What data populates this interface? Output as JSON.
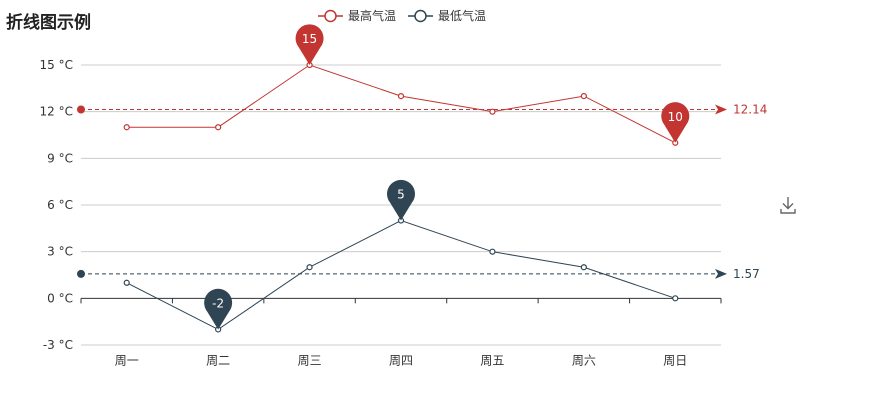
{
  "chart_data": {
    "type": "line",
    "title": "折线图示例",
    "categories": [
      "周一",
      "周二",
      "周三",
      "周四",
      "周五",
      "周六",
      "周日"
    ],
    "ylim": [
      -3,
      15
    ],
    "yticks": [
      -3,
      0,
      3,
      6,
      9,
      12,
      15
    ],
    "y_unit": "°C",
    "grid": true,
    "legend_position": "top-center",
    "series": [
      {
        "name": "最高气温",
        "color": "#c23531",
        "values": [
          11,
          11,
          15,
          13,
          12,
          13,
          10
        ],
        "mark_points": [
          {
            "category": "周三",
            "value": 15,
            "label": "15"
          },
          {
            "category": "周日",
            "value": 10,
            "label": "10"
          }
        ],
        "average": 12.14,
        "average_label": "12.14"
      },
      {
        "name": "最低气温",
        "color": "#2f4554",
        "values": [
          1,
          -2,
          2,
          5,
          3,
          2,
          0
        ],
        "mark_points": [
          {
            "category": "周四",
            "value": 5,
            "label": "5"
          },
          {
            "category": "周二",
            "value": -2,
            "label": "-2"
          }
        ],
        "average": 1.57,
        "average_label": "1.57"
      }
    ]
  },
  "toolbox": {
    "download_icon": "download-icon"
  }
}
